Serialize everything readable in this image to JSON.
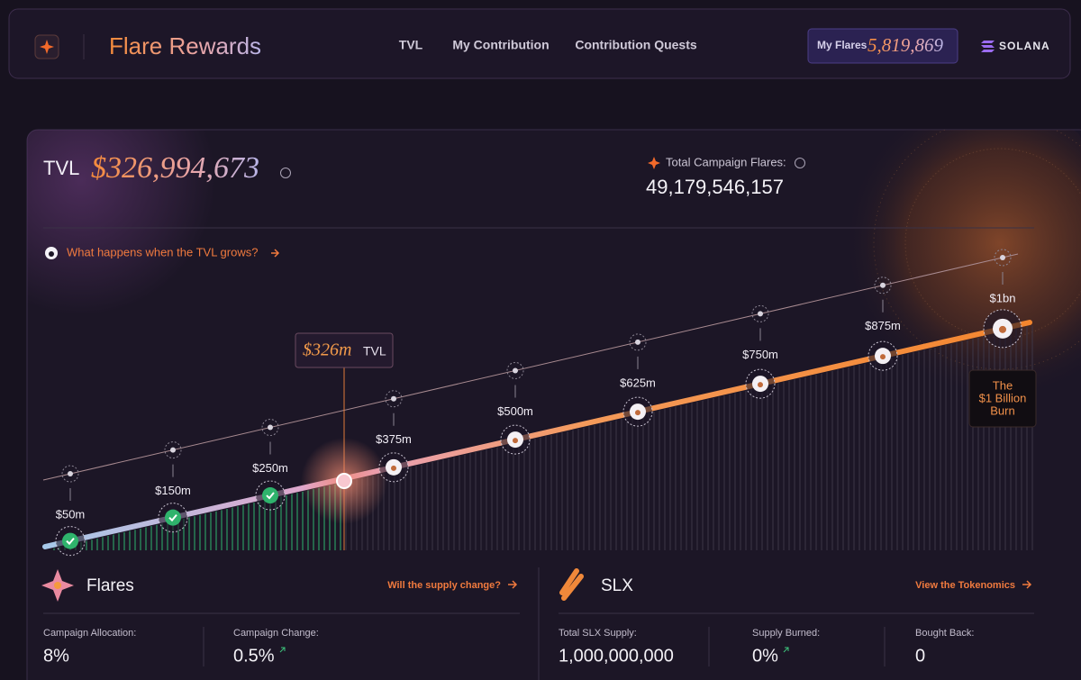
{
  "header": {
    "title": "Flare Rewards",
    "nav": [
      "TVL",
      "My Contribution",
      "Contribution Quests"
    ],
    "my_flares": {
      "label": "My Flares",
      "value": "5,819,869"
    },
    "network": "SOLANA"
  },
  "tvl": {
    "label": "TVL",
    "value": "$326,994,673",
    "total_flares_label": "Total Campaign Flares:",
    "total_flares": "49,179,546,157",
    "link": "What happens when the TVL grows?"
  },
  "milestones": [
    "$50m",
    "$150m",
    "$250m",
    "$375m",
    "$500m",
    "$625m",
    "$750m",
    "$875m",
    "$1bn"
  ],
  "current": {
    "value": "$326m",
    "unit": "TVL"
  },
  "burn": [
    "The",
    "$1 Billion",
    "Burn"
  ],
  "flares": {
    "title": "Flares",
    "link": "Will the supply change?",
    "stats": [
      {
        "label": "Campaign Allocation:",
        "value": "8%"
      },
      {
        "label": "Campaign Change:",
        "value": "0.5%"
      }
    ]
  },
  "slx": {
    "title": "SLX",
    "link": "View the Tokenomics",
    "stats": [
      {
        "label": "Total SLX Supply:",
        "value": "1,000,000,000"
      },
      {
        "label": "Supply Burned:",
        "value": "0%"
      },
      {
        "label": "Bought Back:",
        "value": "0"
      }
    ]
  }
}
